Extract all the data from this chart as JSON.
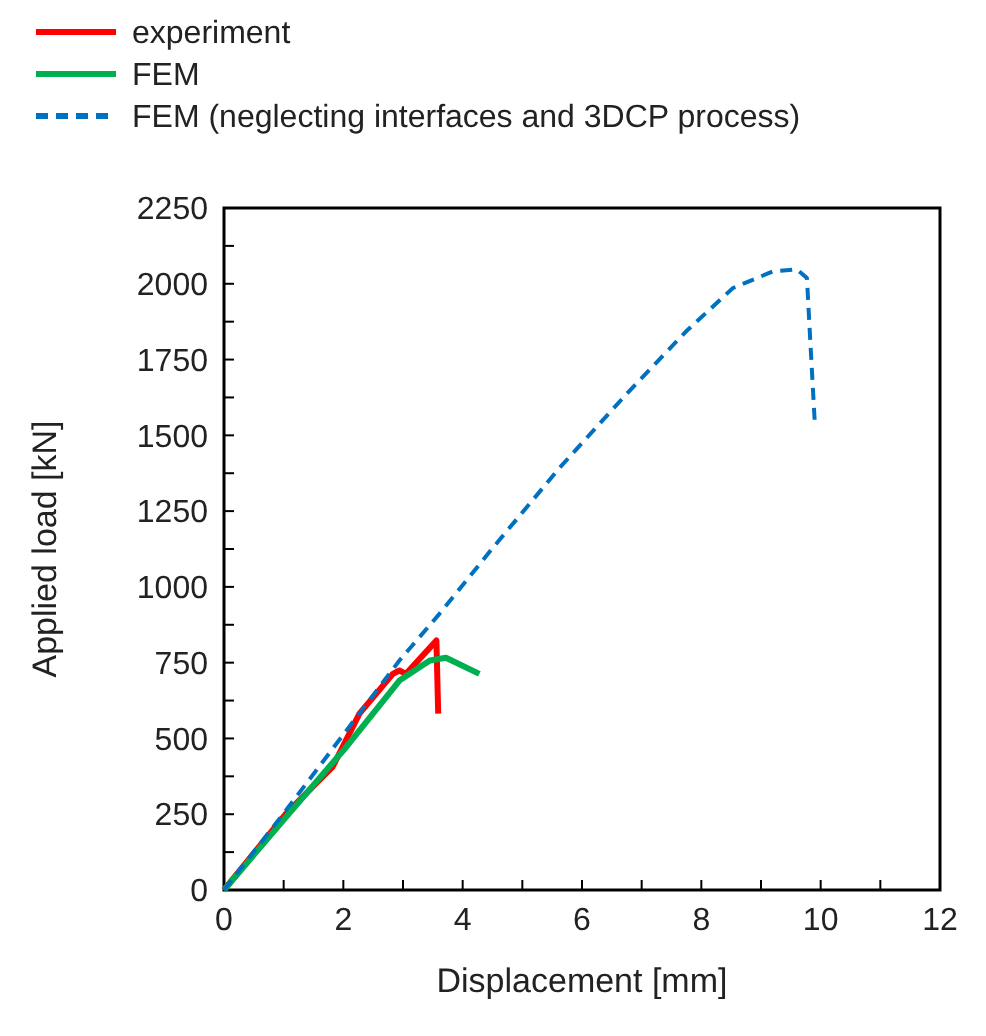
{
  "chart_data": {
    "type": "line",
    "xlabel": "Displacement [mm]",
    "ylabel": "Applied load [kN]",
    "xlim": [
      0,
      12
    ],
    "ylim": [
      0,
      2250
    ],
    "xticks": [
      0,
      {
        "value": 1,
        "label": null
      },
      2,
      {
        "value": 3,
        "label": null
      },
      4,
      {
        "value": 5,
        "label": null
      },
      6,
      {
        "value": 7,
        "label": null
      },
      8,
      {
        "value": 9,
        "label": null
      },
      10,
      {
        "value": 11,
        "label": null
      },
      12
    ],
    "yticks": [
      0,
      {
        "value": 125,
        "label": null
      },
      250,
      {
        "value": 375,
        "label": null
      },
      500,
      {
        "value": 625,
        "label": null
      },
      750,
      {
        "value": 875,
        "label": null
      },
      1000,
      {
        "value": 1125,
        "label": null
      },
      1250,
      {
        "value": 1375,
        "label": null
      },
      1500,
      {
        "value": 1625,
        "label": null
      },
      1750,
      {
        "value": 1875,
        "label": null
      },
      2000,
      {
        "value": 2125,
        "label": null
      },
      2250
    ],
    "legend": "top left",
    "grid": false,
    "marker": "none",
    "series": [
      {
        "name": "experiment",
        "color": "#ff0000",
        "line_style": "solid",
        "x": [
          0,
          1.04,
          1.82,
          2.27,
          2.83,
          2.94,
          3.05,
          3.56,
          3.59
        ],
        "values": [
          0,
          252,
          406,
          582,
          713,
          724,
          713,
          823,
          582
        ]
      },
      {
        "name": "FEM",
        "color": "#00b050",
        "line_style": "solid",
        "x": [
          0,
          1.04,
          2.05,
          2.94,
          3.45,
          3.72,
          4.28
        ],
        "values": [
          0,
          241,
          472,
          691,
          757,
          766,
          713
        ]
      },
      {
        "name": "FEM (neglecting interfaces and 3DCP process)",
        "color": "#0070c0",
        "line_style": "dashed",
        "x": [
          0,
          1.04,
          2.94,
          3.61,
          4.51,
          5.63,
          6.74,
          7.75,
          8.53,
          9.2,
          9.6,
          9.77,
          9.82,
          9.9
        ],
        "values": [
          0,
          263,
          757,
          911,
          1130,
          1394,
          1635,
          1844,
          1986,
          2041,
          2048,
          2019,
          1833,
          1547
        ]
      }
    ]
  }
}
